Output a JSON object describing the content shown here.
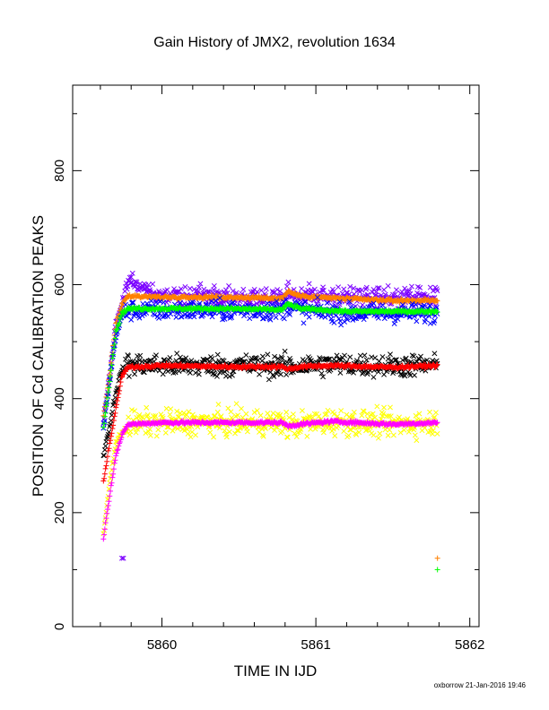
{
  "chart_data": {
    "type": "scatter",
    "title": "Gain History of JMX2, revolution 1634",
    "xlabel": "TIME IN IJD",
    "ylabel": "POSITION OF Cd CALIBRATION PEAKS",
    "xlim": [
      5859.42,
      5862.06
    ],
    "ylim": [
      0,
      950
    ],
    "xticks": [
      5860,
      5861,
      5862
    ],
    "yticks": [
      0,
      200,
      400,
      600,
      800
    ],
    "xtick_labels": [
      "5860",
      "5861",
      "5862"
    ],
    "ytick_labels": [
      "0",
      "200",
      "400",
      "600",
      "800"
    ],
    "grid": false,
    "legend": "none",
    "series": [
      {
        "color": "#7b00ff",
        "marker": "x",
        "scatter_sd": 12,
        "points": [
          [
            5859.62,
            360
          ],
          [
            5859.66,
            440
          ],
          [
            5859.7,
            530
          ],
          [
            5859.74,
            565
          ],
          [
            5859.78,
            605
          ],
          [
            5860.0,
            580
          ],
          [
            5860.4,
            578
          ],
          [
            5860.78,
            578
          ],
          [
            5860.82,
            590
          ],
          [
            5860.9,
            582
          ],
          [
            5861.2,
            578
          ],
          [
            5861.5,
            576
          ],
          [
            5861.79,
            576
          ]
        ]
      },
      {
        "color": "#ff8000",
        "marker": "+",
        "scatter_sd": 2,
        "points": [
          [
            5859.62,
            370
          ],
          [
            5859.66,
            440
          ],
          [
            5859.7,
            530
          ],
          [
            5859.74,
            565
          ],
          [
            5859.78,
            580
          ],
          [
            5860.0,
            578
          ],
          [
            5860.4,
            578
          ],
          [
            5860.78,
            576
          ],
          [
            5860.82,
            588
          ],
          [
            5860.9,
            580
          ],
          [
            5861.2,
            575
          ],
          [
            5861.5,
            572
          ],
          [
            5861.79,
            572
          ]
        ]
      },
      {
        "color": "#0000ff",
        "marker": "x",
        "scatter_sd": 12,
        "points": [
          [
            5859.62,
            350
          ],
          [
            5859.66,
            430
          ],
          [
            5859.7,
            510
          ],
          [
            5859.74,
            545
          ],
          [
            5859.78,
            555
          ],
          [
            5860.0,
            555
          ],
          [
            5860.4,
            555
          ],
          [
            5860.78,
            555
          ],
          [
            5860.82,
            565
          ],
          [
            5860.9,
            555
          ],
          [
            5861.2,
            550
          ],
          [
            5861.5,
            550
          ],
          [
            5861.79,
            550
          ]
        ]
      },
      {
        "color": "#00ff00",
        "marker": "+",
        "scatter_sd": 2,
        "points": [
          [
            5859.62,
            350
          ],
          [
            5859.66,
            430
          ],
          [
            5859.7,
            515
          ],
          [
            5859.74,
            550
          ],
          [
            5859.78,
            558
          ],
          [
            5860.0,
            558
          ],
          [
            5860.4,
            558
          ],
          [
            5860.78,
            556
          ],
          [
            5860.82,
            566
          ],
          [
            5860.9,
            558
          ],
          [
            5861.2,
            553
          ],
          [
            5861.5,
            553
          ],
          [
            5861.79,
            553
          ]
        ]
      },
      {
        "color": "#000000",
        "marker": "x",
        "scatter_sd": 14,
        "points": [
          [
            5859.62,
            300
          ],
          [
            5859.66,
            350
          ],
          [
            5859.7,
            410
          ],
          [
            5859.74,
            450
          ],
          [
            5859.78,
            460
          ],
          [
            5860.0,
            458
          ],
          [
            5860.4,
            458
          ],
          [
            5860.78,
            458
          ],
          [
            5860.82,
            455
          ],
          [
            5860.9,
            458
          ],
          [
            5861.2,
            460
          ],
          [
            5861.5,
            458
          ],
          [
            5861.79,
            458
          ]
        ]
      },
      {
        "color": "#ff0000",
        "marker": "+",
        "scatter_sd": 2,
        "points": [
          [
            5859.62,
            255
          ],
          [
            5859.66,
            320
          ],
          [
            5859.7,
            380
          ],
          [
            5859.74,
            440
          ],
          [
            5859.78,
            455
          ],
          [
            5860.0,
            458
          ],
          [
            5860.4,
            456
          ],
          [
            5860.78,
            456
          ],
          [
            5860.82,
            452
          ],
          [
            5860.9,
            456
          ],
          [
            5861.1,
            458
          ],
          [
            5861.5,
            455
          ],
          [
            5861.79,
            458
          ]
        ]
      },
      {
        "color": "#ffff00",
        "marker": "x",
        "scatter_sd": 16,
        "points": [
          [
            5859.62,
            160
          ],
          [
            5859.66,
            250
          ],
          [
            5859.7,
            320
          ],
          [
            5859.74,
            340
          ],
          [
            5859.78,
            355
          ],
          [
            5860.0,
            358
          ],
          [
            5860.4,
            358
          ],
          [
            5860.78,
            358
          ],
          [
            5860.82,
            352
          ],
          [
            5860.9,
            355
          ],
          [
            5861.1,
            360
          ],
          [
            5861.5,
            355
          ],
          [
            5861.79,
            358
          ]
        ]
      },
      {
        "color": "#ff00ff",
        "marker": "+",
        "scatter_sd": 2,
        "points": [
          [
            5859.62,
            155
          ],
          [
            5859.66,
            230
          ],
          [
            5859.7,
            300
          ],
          [
            5859.74,
            335
          ],
          [
            5859.78,
            355
          ],
          [
            5860.0,
            358
          ],
          [
            5860.4,
            358
          ],
          [
            5860.78,
            358
          ],
          [
            5860.82,
            352
          ],
          [
            5860.9,
            355
          ],
          [
            5861.1,
            360
          ],
          [
            5861.5,
            355
          ],
          [
            5861.79,
            358
          ]
        ]
      }
    ],
    "outliers": [
      {
        "x": 5859.74,
        "y": 120,
        "color": "#7b00ff",
        "marker": "x"
      },
      {
        "x": 5859.75,
        "y": 120,
        "color": "#7b00ff",
        "marker": "x"
      },
      {
        "x": 5861.79,
        "y": 120,
        "color": "#ff8000",
        "marker": "+"
      },
      {
        "x": 5861.79,
        "y": 100,
        "color": "#00ff00",
        "marker": "+"
      }
    ]
  },
  "footer": "oxborrow 21-Jan-2016 19:46"
}
